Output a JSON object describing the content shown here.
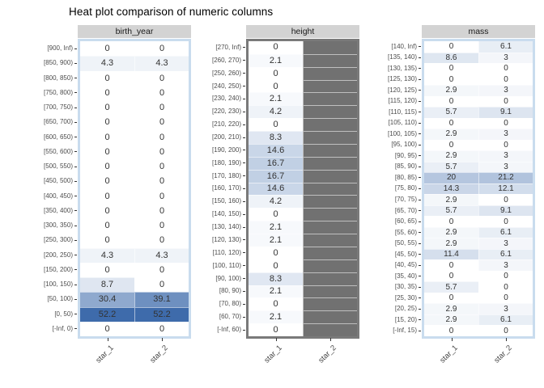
{
  "title": "Heat plot comparison of numeric columns",
  "chart_data": {
    "type": "heatmap",
    "title": "Heat plot comparison of numeric columns",
    "columns": [
      "star_1",
      "star_2"
    ],
    "value_range": [
      0,
      52.2
    ],
    "legend": "none",
    "colors": {
      "low": "#FFFFFF",
      "high": "#3E6BAB",
      "na_cell": "#717171",
      "panel_edge_blue": "#C9DCEE",
      "panel_edge_grey": "#7A7A7A",
      "strip_bg": "#D3D3D3",
      "cell_text": "#333333",
      "axis_text": "#4d4d4d",
      "tick": "#333333"
    },
    "facets": [
      {
        "name": "birth_year",
        "panel_bg": "#C9DCEE",
        "bins": [
          "[900, Inf)",
          "[850, 900)",
          "[800, 850)",
          "[750, 800)",
          "[700, 750)",
          "[650, 700)",
          "[600, 650)",
          "[550, 600)",
          "[500, 550)",
          "[450, 500)",
          "[400, 450)",
          "[350, 400)",
          "[300, 350)",
          "[250, 300)",
          "[200, 250)",
          "[150, 200)",
          "[100, 150)",
          "[50, 100)",
          "[0, 50)",
          "[-Inf, 0)"
        ],
        "series": [
          {
            "name": "star_1",
            "values": [
              0,
              4.3,
              0,
              0,
              0,
              0,
              0,
              0,
              0,
              0,
              0,
              0,
              0,
              0,
              4.3,
              0,
              8.7,
              30.4,
              52.2,
              0
            ]
          },
          {
            "name": "star_2",
            "values": [
              0,
              4.3,
              0,
              0,
              0,
              0,
              0,
              0,
              0,
              0,
              0,
              0,
              0,
              0,
              4.3,
              0,
              0,
              39.1,
              52.2,
              0
            ]
          }
        ]
      },
      {
        "name": "height",
        "panel_bg": "#7A7A7A",
        "bins": [
          "[270, Inf)",
          "[260, 270)",
          "[250, 260)",
          "[240, 250)",
          "[230, 240)",
          "[220, 230)",
          "[210, 220)",
          "[200, 210)",
          "[190, 200)",
          "[180, 190)",
          "[170, 180)",
          "[160, 170)",
          "[150, 160)",
          "[140, 150)",
          "[130, 140)",
          "[120, 130)",
          "[110, 120)",
          "[100, 110)",
          "[90, 100)",
          "[80, 90)",
          "[70, 80)",
          "[60, 70)",
          "[-Inf, 60)"
        ],
        "series": [
          {
            "name": "star_1",
            "values": [
              0,
              2.1,
              0,
              0,
              2.1,
              4.2,
              0,
              8.3,
              14.6,
              16.7,
              16.7,
              14.6,
              4.2,
              0,
              2.1,
              2.1,
              0,
              0,
              8.3,
              2.1,
              0,
              2.1,
              0
            ]
          },
          {
            "name": "star_2",
            "values": [
              null,
              null,
              null,
              null,
              null,
              null,
              null,
              null,
              null,
              null,
              null,
              null,
              null,
              null,
              null,
              null,
              null,
              null,
              null,
              null,
              null,
              null,
              null
            ]
          }
        ]
      },
      {
        "name": "mass",
        "panel_bg": "#C9DCEE",
        "bins": [
          "[140, Inf)",
          "[135, 140)",
          "[130, 135)",
          "[125, 130)",
          "[120, 125)",
          "[115, 120)",
          "[110, 115)",
          "[105, 110)",
          "[100, 105)",
          "[95, 100)",
          "[90, 95)",
          "[85, 90)",
          "[80, 85)",
          "[75, 80)",
          "[70, 75)",
          "[65, 70)",
          "[60, 65)",
          "[55, 60)",
          "[50, 55)",
          "[45, 50)",
          "[40, 45)",
          "[35, 40)",
          "[30, 35)",
          "[25, 30)",
          "[20, 25)",
          "[15, 20)",
          "[-Inf, 15)"
        ],
        "series": [
          {
            "name": "star_1",
            "values": [
              0,
              8.6,
              0,
              0,
              2.9,
              0,
              5.7,
              0,
              2.9,
              0,
              2.9,
              5.7,
              20,
              14.3,
              2.9,
              5.7,
              0,
              2.9,
              2.9,
              11.4,
              0,
              0,
              5.7,
              0,
              2.9,
              2.9,
              0
            ]
          },
          {
            "name": "star_2",
            "values": [
              6.1,
              3,
              0,
              0,
              3,
              0,
              9.1,
              0,
              3,
              0,
              3,
              3,
              21.2,
              12.1,
              0,
              9.1,
              0,
              6.1,
              3,
              6.1,
              3,
              0,
              0,
              0,
              3,
              6.1,
              0
            ]
          }
        ]
      }
    ]
  }
}
